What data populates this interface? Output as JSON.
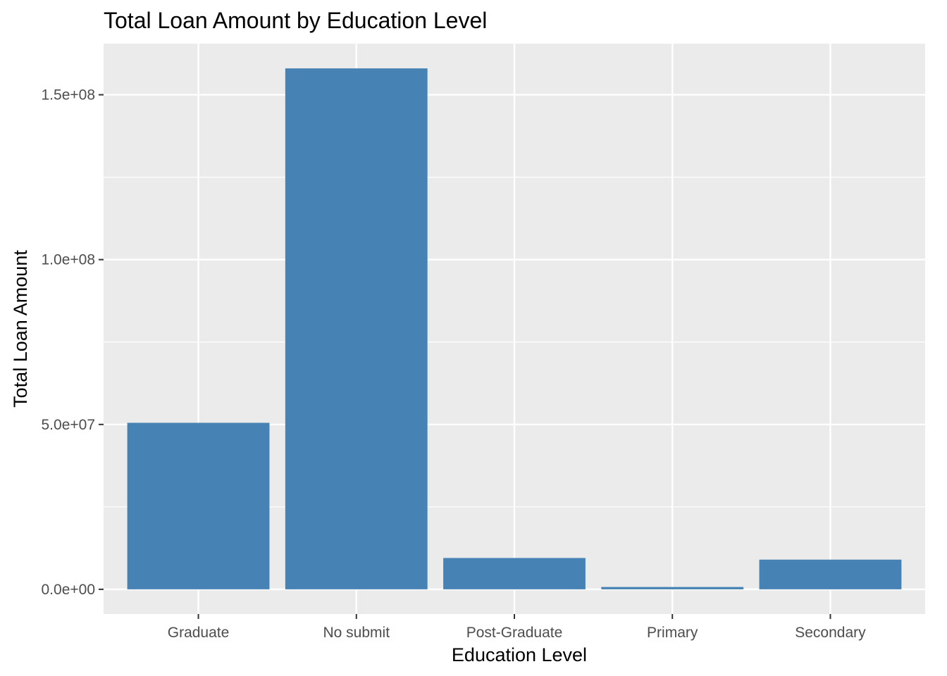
{
  "chart_data": {
    "type": "bar",
    "title": "Total Loan Amount by Education Level",
    "xlabel": "Education Level",
    "ylabel": "Total Loan Amount",
    "categories": [
      "Graduate",
      "No submit",
      "Post-Graduate",
      "Primary",
      "Secondary"
    ],
    "values": [
      50500000,
      158000000,
      9500000,
      700000,
      9000000
    ],
    "ylim": [
      -7500000,
      165500000
    ],
    "y_ticks": [
      0,
      50000000,
      100000000,
      150000000
    ],
    "y_tick_labels": [
      "0.0e+00",
      "5.0e+07",
      "1.0e+08",
      "1.5e+08"
    ],
    "grid": true,
    "legend": "none",
    "colors": {
      "bar": "#4682b4",
      "panel": "#ebebeb",
      "grid": "#ffffff",
      "tick": "#333333"
    }
  }
}
